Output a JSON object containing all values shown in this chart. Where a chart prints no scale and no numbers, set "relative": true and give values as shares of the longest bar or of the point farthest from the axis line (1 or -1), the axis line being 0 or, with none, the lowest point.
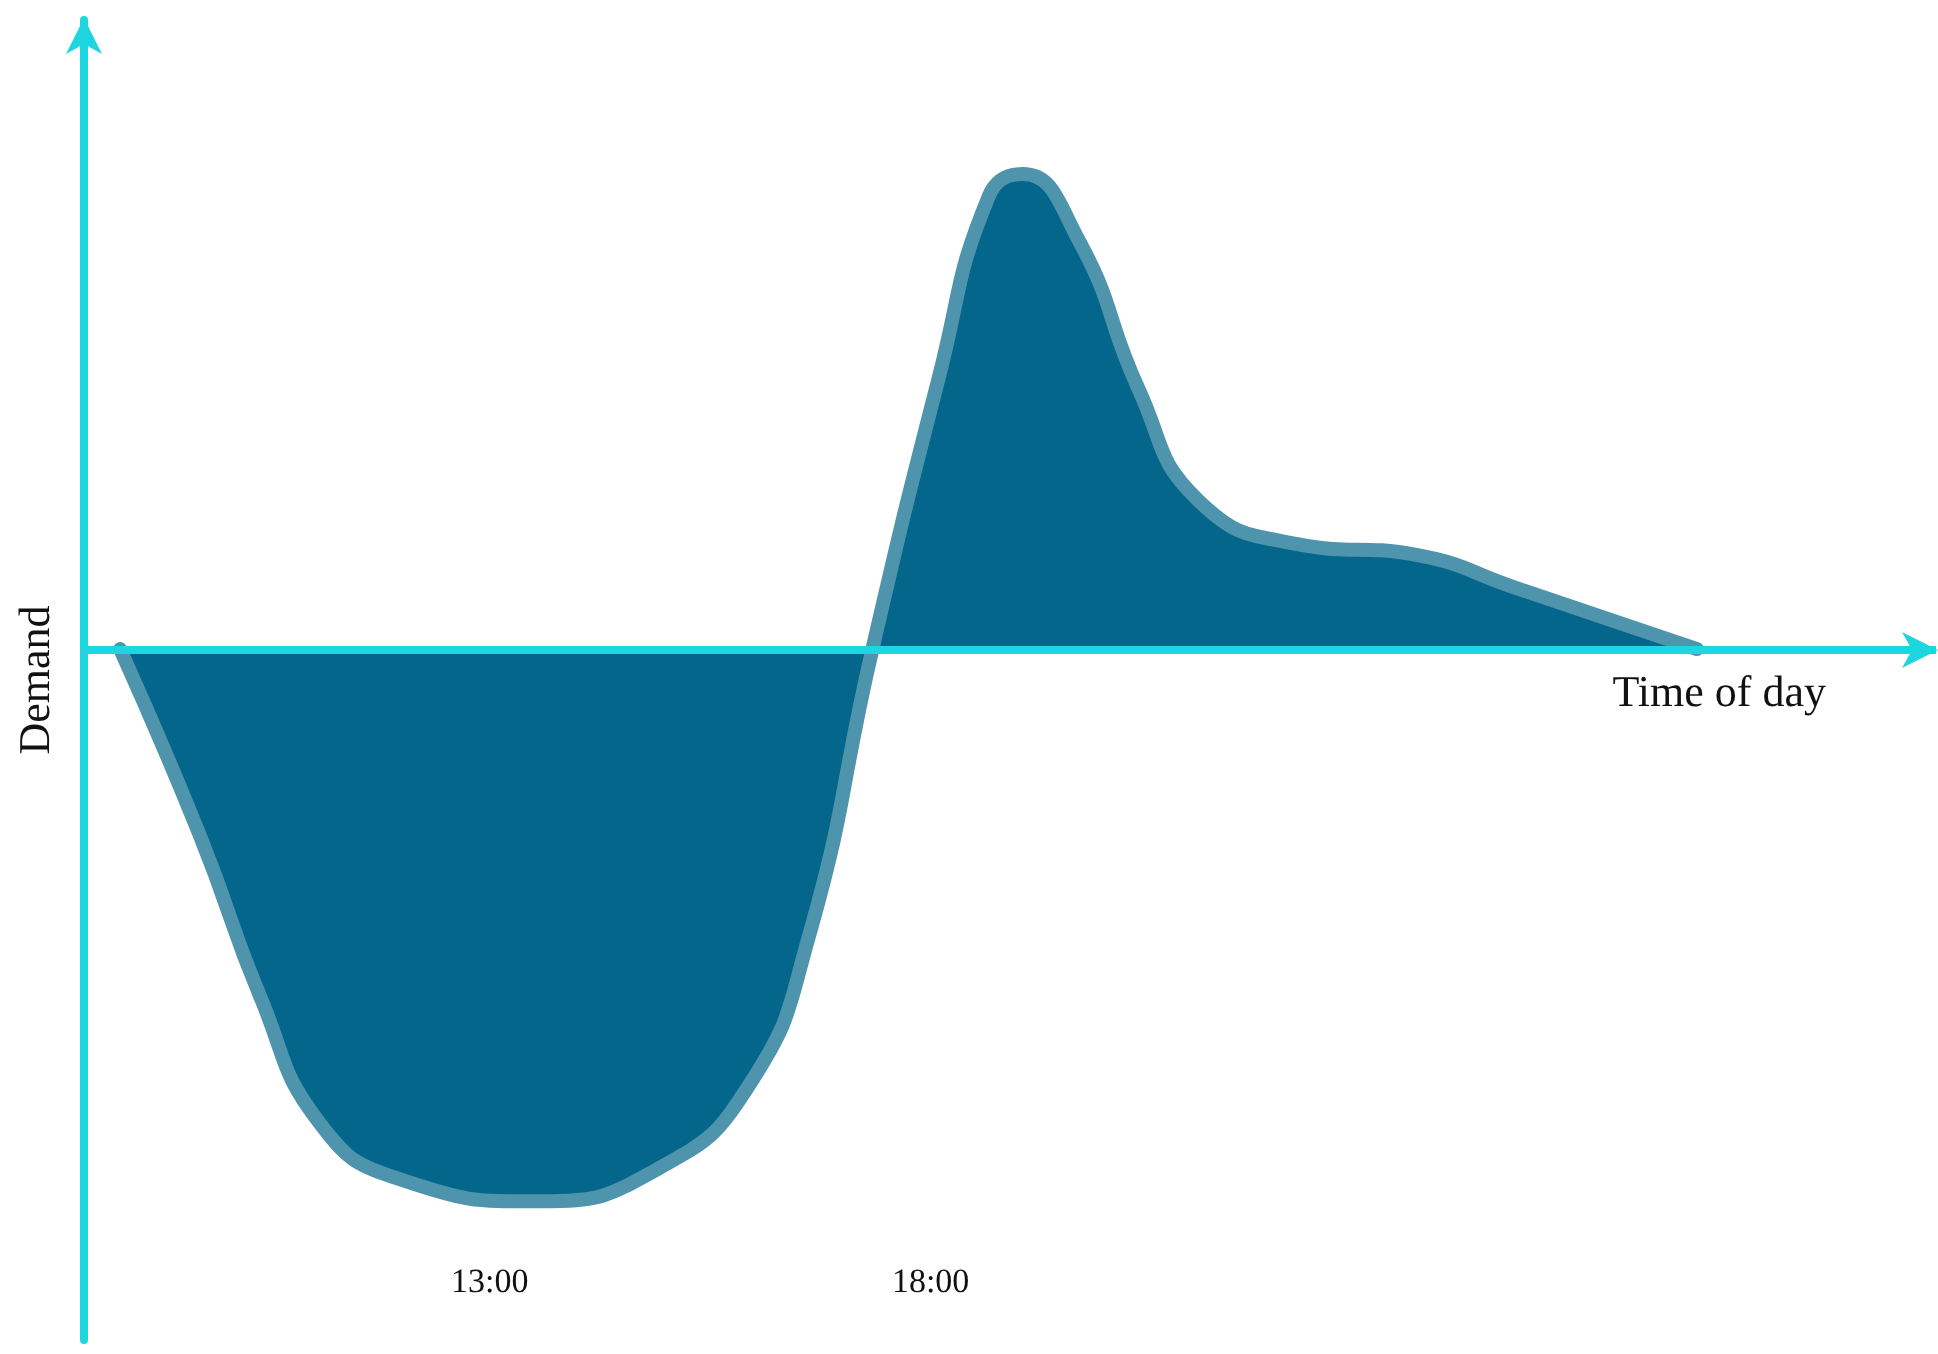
{
  "chart_data": {
    "type": "area",
    "relative": true,
    "xlabel": "Time of day",
    "ylabel": "Demand",
    "x": [
      8.81,
      9.72,
      10.4,
      11.08,
      11.98,
      13.57,
      14.92,
      15.94,
      16.62,
      17.34,
      18.09,
      18.66,
      19.04,
      19.68,
      20.36,
      21.03,
      22.16,
      23.52,
      24.65,
      26.69
    ],
    "series": [
      {
        "color": "#03668a",
        "values": [
          0,
          -0.34,
          -0.63,
          -0.86,
          -0.96,
          -1,
          -0.94,
          -0.79,
          -0.52,
          0,
          0.49,
          0.82,
          0.86,
          0.74,
          0.47,
          0.27,
          0.19,
          0.17,
          0.11,
          0
        ]
      }
    ],
    "xlim": [
      8.4,
      29.4
    ],
    "xticks": [
      {
        "value": 13,
        "label": "13:00"
      },
      {
        "value": 18,
        "label": "18:00"
      }
    ],
    "ref_lines": [
      {
        "axis": "y",
        "value": 0,
        "color": "#1ed6e0"
      }
    ],
    "grid": false,
    "marker": "none",
    "line_style": "solid"
  }
}
